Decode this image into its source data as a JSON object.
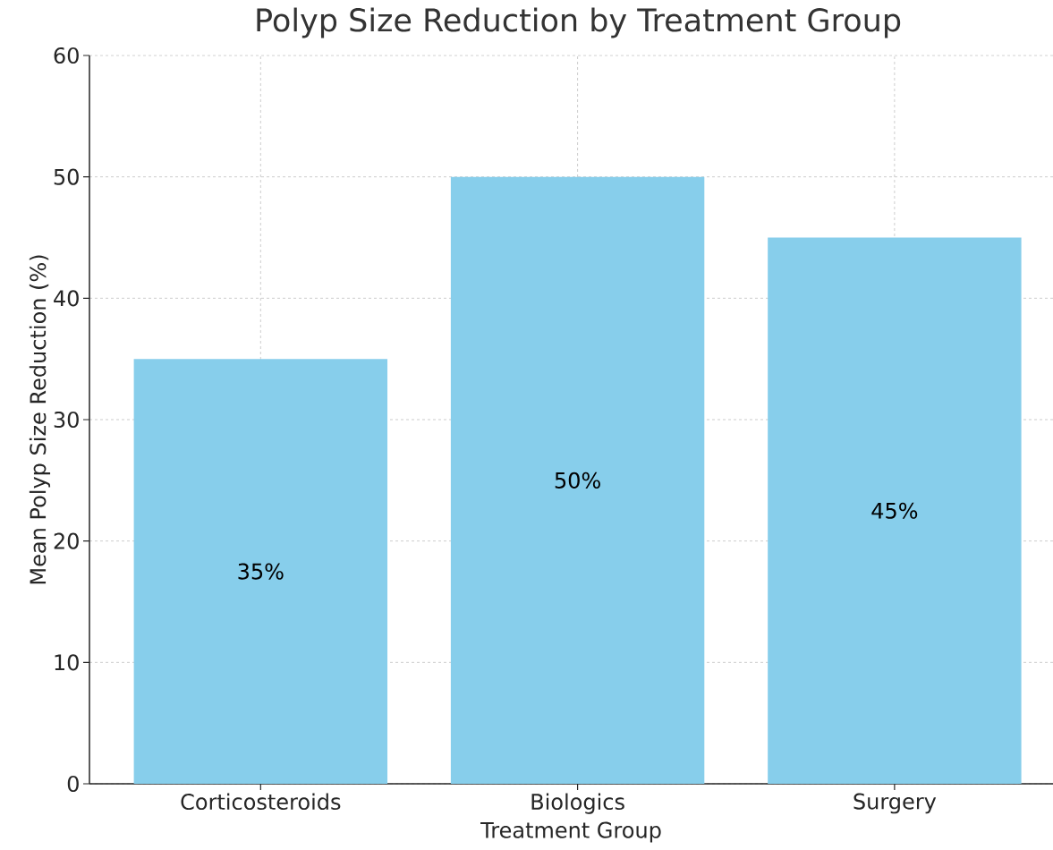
{
  "chart_data": {
    "type": "bar",
    "title": "Polyp Size Reduction by Treatment Group",
    "xlabel": "Treatment Group",
    "ylabel": "Mean Polyp Size Reduction (%)",
    "categories": [
      "Corticosteroids",
      "Biologics",
      "Surgery"
    ],
    "values": [
      35,
      50,
      45
    ],
    "value_labels": [
      "35%",
      "50%",
      "45%"
    ],
    "color": "#87ceeb",
    "ylim": [
      0,
      60
    ],
    "yticks": [
      0,
      10,
      20,
      30,
      40,
      50,
      60
    ],
    "grid": true
  }
}
